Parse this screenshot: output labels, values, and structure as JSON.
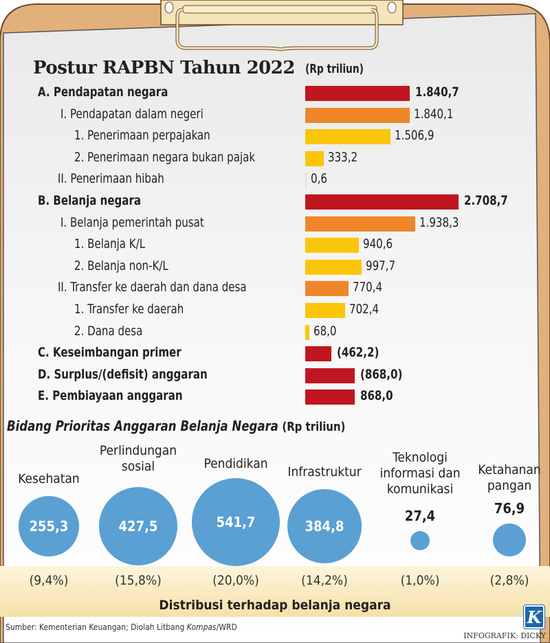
{
  "title": "Postur RAPBN Tahun 2022",
  "unit": "(Rp triliun)",
  "colors": {
    "level0": "#c0161f",
    "level1": "#f0862a",
    "level2": "#fbc50a",
    "bubble": "#5aa0d3",
    "board": "#e2b07b"
  },
  "chart_data": [
    {
      "type": "bar",
      "orientation": "horizontal",
      "title": "Postur RAPBN Tahun 2022",
      "unit": "Rp triliun",
      "rows": [
        {
          "label": "A. Pendapatan negara",
          "value": 1840.7,
          "display": "1.840,7",
          "level": 0
        },
        {
          "label": "I. Pendapatan dalam negeri",
          "value": 1840.1,
          "display": "1.840,1",
          "level": 1
        },
        {
          "label": "1. Penerimaan perpajakan",
          "value": 1506.9,
          "display": "1.506,9",
          "level": 2
        },
        {
          "label": "2. Penerimaan negara bukan pajak",
          "value": 333.2,
          "display": "333,2",
          "level": 2
        },
        {
          "label": "II. Penerimaan hibah",
          "value": 0.6,
          "display": "0,6",
          "level": 1,
          "color": "none"
        },
        {
          "label": "B. Belanja negara",
          "value": 2708.7,
          "display": "2.708,7",
          "level": 0
        },
        {
          "label": "I. Belanja pemerintah pusat",
          "value": 1938.3,
          "display": "1.938,3",
          "level": 1
        },
        {
          "label": "1. Belanja K/L",
          "value": 940.6,
          "display": "940,6",
          "level": 2
        },
        {
          "label": "2. Belanja non-K/L",
          "value": 997.7,
          "display": "997,7",
          "level": 2
        },
        {
          "label": "II. Transfer ke daerah dan dana desa",
          "value": 770.4,
          "display": "770,4",
          "level": 1
        },
        {
          "label": "1. Transfer ke daerah",
          "value": 702.4,
          "display": "702,4",
          "level": 2
        },
        {
          "label": "2. Dana desa",
          "value": 68.0,
          "display": "68,0",
          "level": 2
        },
        {
          "label": "C. Keseimbangan primer",
          "value": -462.2,
          "display": "(462,2)",
          "level": 0
        },
        {
          "label": "D. Surplus/(defisit) anggaran",
          "value": -868.0,
          "display": "(868,0)",
          "level": 0
        },
        {
          "label": "E. Pembiayaan anggaran",
          "value": 868.0,
          "display": "868,0",
          "level": 0
        }
      ]
    },
    {
      "type": "bubble",
      "title": "Bidang Prioritas Anggaran Belanja Negara",
      "unit": "(Rp triliun)",
      "footer": "Distribusi terhadap belanja negara",
      "items": [
        {
          "category": [
            "Kesehatan"
          ],
          "value": 255.3,
          "display": "255,3",
          "share": "(9,4%)"
        },
        {
          "category": [
            "Perlindungan",
            "sosial"
          ],
          "value": 427.5,
          "display": "427,5",
          "share": "(15,8%)"
        },
        {
          "category": [
            "Pendidikan"
          ],
          "value": 541.7,
          "display": "541,7",
          "share": "(20,0%)"
        },
        {
          "category": [
            "Infrastruktur"
          ],
          "value": 384.8,
          "display": "384,8",
          "share": "(14,2%)"
        },
        {
          "category": [
            "Teknologi",
            "informasi dan",
            "komunikasi"
          ],
          "value": 27.4,
          "display": "27,4",
          "share": "(1,0%)"
        },
        {
          "category": [
            "Ketahanan",
            "pangan"
          ],
          "value": 76.9,
          "display": "76,9",
          "share": "(2,8%)"
        }
      ]
    }
  ],
  "source": "Sumber: Kementerian Keuangan; Diolah Litbang ",
  "source_italic": "Kompas",
  "source_tail": "/WRD",
  "credit": "INFOGRAFIK: DICKY",
  "logo": "K"
}
